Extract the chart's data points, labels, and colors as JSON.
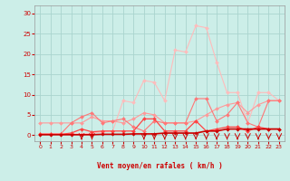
{
  "xlabel": "Vent moyen/en rafales ( km/h )",
  "xlim": [
    -0.5,
    23.5
  ],
  "ylim": [
    -1.5,
    32
  ],
  "background_color": "#cceee8",
  "grid_color": "#aad4ce",
  "text_color": "#cc0000",
  "x_ticks": [
    0,
    1,
    2,
    3,
    4,
    5,
    6,
    7,
    8,
    9,
    10,
    11,
    12,
    13,
    14,
    15,
    16,
    17,
    18,
    19,
    20,
    21,
    22,
    23
  ],
  "y_ticks": [
    0,
    5,
    10,
    15,
    20,
    25,
    30
  ],
  "lines": [
    {
      "color": "#ffbbbb",
      "x": [
        0,
        1,
        2,
        3,
        4,
        5,
        6,
        7,
        8,
        9,
        10,
        11,
        12,
        13,
        14,
        15,
        16,
        17,
        18,
        19,
        20,
        21,
        22,
        23
      ],
      "y": [
        0.3,
        0.3,
        0.3,
        0.3,
        0.3,
        0.5,
        0.8,
        1.0,
        8.5,
        8.0,
        13.5,
        13.0,
        8.5,
        21.0,
        20.5,
        27.0,
        26.5,
        18.0,
        10.5,
        10.5,
        3.0,
        10.5,
        10.5,
        8.5
      ],
      "marker": "D",
      "markersize": 2.0,
      "linewidth": 0.8
    },
    {
      "color": "#ff9999",
      "x": [
        0,
        1,
        2,
        3,
        4,
        5,
        6,
        7,
        8,
        9,
        10,
        11,
        12,
        13,
        14,
        15,
        16,
        17,
        18,
        19,
        20,
        21,
        22,
        23
      ],
      "y": [
        3.0,
        3.0,
        3.0,
        3.0,
        3.0,
        4.5,
        3.5,
        3.5,
        3.0,
        4.0,
        5.5,
        5.0,
        3.0,
        3.0,
        3.0,
        3.5,
        5.0,
        6.5,
        7.5,
        8.0,
        5.5,
        7.5,
        8.5,
        8.5
      ],
      "marker": "D",
      "markersize": 2.0,
      "linewidth": 0.8
    },
    {
      "color": "#ff7777",
      "x": [
        0,
        1,
        2,
        3,
        4,
        5,
        6,
        7,
        8,
        9,
        10,
        11,
        12,
        13,
        14,
        15,
        16,
        17,
        18,
        19,
        20,
        21,
        22,
        23
      ],
      "y": [
        0.3,
        0.3,
        0.3,
        3.0,
        4.5,
        5.5,
        3.0,
        3.5,
        4.0,
        2.0,
        1.0,
        3.5,
        3.0,
        3.0,
        3.0,
        9.0,
        9.0,
        3.5,
        5.0,
        8.0,
        3.0,
        2.0,
        8.5,
        8.5
      ],
      "marker": "D",
      "markersize": 2.0,
      "linewidth": 0.8
    },
    {
      "color": "#ff4444",
      "x": [
        0,
        1,
        2,
        3,
        4,
        5,
        6,
        7,
        8,
        9,
        10,
        11,
        12,
        13,
        14,
        15,
        16,
        17,
        18,
        19,
        20,
        21,
        22,
        23
      ],
      "y": [
        0.2,
        0.2,
        0.2,
        0.5,
        1.5,
        0.8,
        1.0,
        1.0,
        1.0,
        1.0,
        4.0,
        4.0,
        1.0,
        1.0,
        1.0,
        3.5,
        1.0,
        1.5,
        2.0,
        2.0,
        1.0,
        2.0,
        1.5,
        1.5
      ],
      "marker": "D",
      "markersize": 2.0,
      "linewidth": 0.9
    },
    {
      "color": "#cc0000",
      "x": [
        0,
        1,
        2,
        3,
        4,
        5,
        6,
        7,
        8,
        9,
        10,
        11,
        12,
        13,
        14,
        15,
        16,
        17,
        18,
        19,
        20,
        21,
        22,
        23
      ],
      "y": [
        0.1,
        0.1,
        0.1,
        0.1,
        0.1,
        0.1,
        0.2,
        0.2,
        0.2,
        0.3,
        0.3,
        0.3,
        0.5,
        0.5,
        0.5,
        0.5,
        1.0,
        1.0,
        1.5,
        1.5,
        1.5,
        1.5,
        1.5,
        1.5
      ],
      "marker": "D",
      "markersize": 1.8,
      "linewidth": 1.2
    }
  ],
  "wind_arrows": [
    4,
    5,
    10,
    11,
    12,
    13,
    14,
    15,
    16,
    17,
    18,
    19,
    20,
    21,
    22,
    23
  ]
}
